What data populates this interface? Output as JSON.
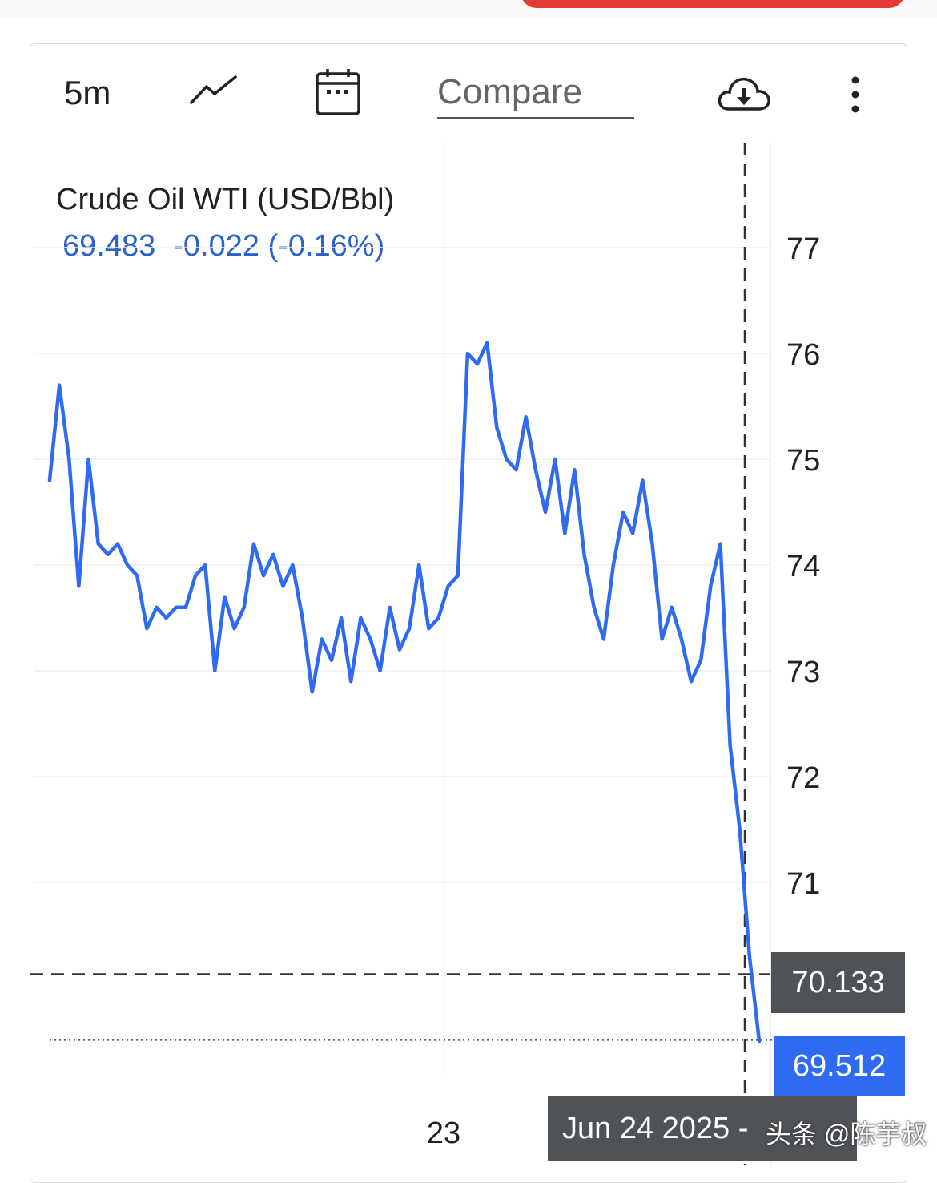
{
  "toolbar": {
    "interval": "5m",
    "compare_label": "Compare",
    "icons": [
      "line-chart-icon",
      "calendar-icon",
      "cloud-download-icon",
      "more-vertical-icon"
    ]
  },
  "header": {
    "title": "Crude Oil WTI (USD/Bbl)",
    "price": "69.483",
    "change": "-0.022 (-0.16%)"
  },
  "tags": {
    "crosshair_price": "70.133",
    "last_price": "69.512",
    "crosshair_date": "Jun 24 2025 -"
  },
  "watermark": "头条 @陈芋叔",
  "colors": {
    "line": "#2f6bf0",
    "quote": "#2a62c9",
    "tag_dark": "#4f5358",
    "tag_blue": "#2f6bf0",
    "topbar_red": "#e53935"
  },
  "chart_data": {
    "type": "line",
    "title": "Crude Oil WTI (USD/Bbl)",
    "xlabel": "",
    "ylabel": "",
    "x_tick_labels": [
      "23"
    ],
    "y_ticks": [
      71,
      72,
      73,
      74,
      75,
      76,
      77
    ],
    "ylim": [
      68.4,
      77.8
    ],
    "grid": true,
    "series": [
      {
        "name": "",
        "values": [
          74.8,
          75.7,
          75.0,
          73.8,
          75.0,
          74.2,
          74.1,
          74.2,
          74.0,
          73.9,
          73.4,
          73.6,
          73.5,
          73.6,
          73.6,
          73.9,
          74.0,
          73.0,
          73.7,
          73.4,
          73.6,
          74.2,
          73.9,
          74.1,
          73.8,
          74.0,
          73.5,
          72.8,
          73.3,
          73.1,
          73.5,
          72.9,
          73.5,
          73.3,
          73.0,
          73.6,
          73.2,
          73.4,
          74.0,
          73.4,
          73.5,
          73.8,
          73.9,
          76.0,
          75.9,
          76.1,
          75.3,
          75.0,
          74.9,
          75.4,
          74.9,
          74.5,
          75.0,
          74.3,
          74.9,
          74.1,
          73.6,
          73.3,
          74.0,
          74.5,
          74.3,
          74.8,
          74.2,
          73.3,
          73.6,
          73.3,
          72.9,
          73.1,
          73.8,
          74.2,
          72.3,
          71.5,
          70.3,
          69.5
        ]
      }
    ],
    "crosshair": {
      "price": 70.133,
      "date": "Jun 24 2025"
    },
    "last_value": 69.512
  }
}
